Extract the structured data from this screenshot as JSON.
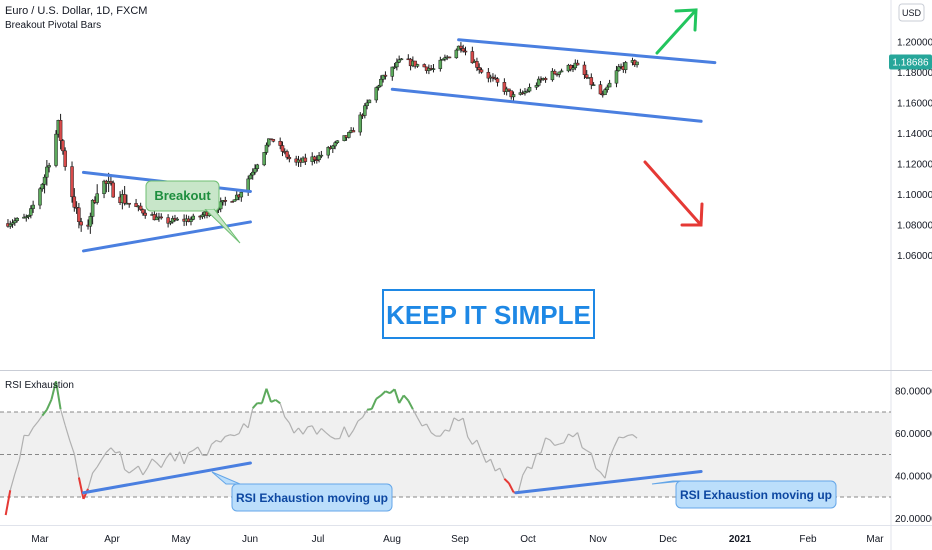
{
  "header": {
    "symbol_line": "Euro / U.S. Dollar, 1D, FXCM",
    "indicator_line": "Breakout Pivotal Bars",
    "currency_button": "USD"
  },
  "price_pane": {
    "y_ticks": [
      "1.20000",
      "1.18000",
      "1.16000",
      "1.14000",
      "1.12000",
      "1.10000",
      "1.08000",
      "1.06000"
    ],
    "current_price": "1.18686",
    "current_price_color": "#26a69a"
  },
  "rsi_pane": {
    "title": "RSI Exhaustion",
    "y_ticks": [
      "80.00000",
      "60.00000",
      "40.00000",
      "20.00000"
    ]
  },
  "x_axis": {
    "labels": [
      "Mar",
      "Apr",
      "May",
      "Jun",
      "Jul",
      "Aug",
      "Sep",
      "Oct",
      "Nov",
      "Dec",
      "2021",
      "Feb",
      "Mar"
    ]
  },
  "annotations": {
    "breakout_label": "Breakout",
    "keep_simple": "KEEP IT SIMPLE",
    "rsi_note_1": "RSI Exhaustion moving up",
    "rsi_note_2": "RSI Exhaustion moving up"
  },
  "colors": {
    "trendline": "#4a7fe0",
    "up_arrow": "#22c55e",
    "down_arrow": "#e53935",
    "candle_up": "#5daa5d",
    "candle_down": "#d84a4a",
    "rsi_line": "#b0b0b0"
  },
  "chart_data": [
    {
      "type": "candlestick",
      "x_axis": "date (2020)",
      "y_range": [
        1.05,
        1.215
      ],
      "key_levels": {
        "mar_low": 1.0636,
        "mar_high": 1.1495,
        "aug_high": 1.2011,
        "current": 1.18686
      },
      "close_path": [
        {
          "x": "Feb 15",
          "y": 1.081
        },
        {
          "x": "Feb 25",
          "y": 1.085
        },
        {
          "x": "Mar 3",
          "y": 1.112
        },
        {
          "x": "Mar 9",
          "y": 1.145
        },
        {
          "x": "Mar 13",
          "y": 1.112
        },
        {
          "x": "Mar 20",
          "y": 1.07
        },
        {
          "x": "Mar 27",
          "y": 1.11
        },
        {
          "x": "Apr 10",
          "y": 1.093
        },
        {
          "x": "Apr 24",
          "y": 1.082
        },
        {
          "x": "May 8",
          "y": 1.084
        },
        {
          "x": "May 21",
          "y": 1.095
        },
        {
          "x": "May 27",
          "y": 1.1
        },
        {
          "x": "Jun 10",
          "y": 1.137
        },
        {
          "x": "Jun 20",
          "y": 1.12
        },
        {
          "x": "Jul 1",
          "y": 1.125
        },
        {
          "x": "Jul 15",
          "y": 1.14
        },
        {
          "x": "Jul 28",
          "y": 1.175
        },
        {
          "x": "Aug 6",
          "y": 1.188
        },
        {
          "x": "Aug 20",
          "y": 1.182
        },
        {
          "x": "Sep 1",
          "y": 1.198
        },
        {
          "x": "Sep 10",
          "y": 1.181
        },
        {
          "x": "Sep 25",
          "y": 1.163
        },
        {
          "x": "Oct 9",
          "y": 1.178
        },
        {
          "x": "Oct 21",
          "y": 1.185
        },
        {
          "x": "Nov 2",
          "y": 1.164
        },
        {
          "x": "Nov 9",
          "y": 1.183
        },
        {
          "x": "Nov 17",
          "y": 1.1869
        }
      ],
      "trendlines": [
        {
          "name": "triangle-top",
          "from": {
            "x": "Mar 20",
            "y": 1.1145
          },
          "to": {
            "x": "Jun 1",
            "y": 1.102
          }
        },
        {
          "name": "triangle-bottom",
          "from": {
            "x": "Mar 20",
            "y": 1.063
          },
          "to": {
            "x": "Jun 1",
            "y": 1.082
          }
        },
        {
          "name": "channel-top",
          "from": {
            "x": "Aug 31",
            "y": 1.2015
          },
          "to": {
            "x": "Dec 21",
            "y": 1.1865
          }
        },
        {
          "name": "channel-bottom",
          "from": {
            "x": "Aug 2",
            "y": 1.169
          },
          "to": {
            "x": "Dec 15",
            "y": 1.148
          }
        }
      ]
    },
    {
      "type": "line",
      "title": "RSI Exhaustion",
      "y_range": [
        15,
        88
      ],
      "reference_levels": [
        70,
        50,
        30
      ],
      "series": [
        {
          "values": [
            {
              "x": "Feb 15",
              "y": 25
            },
            {
              "x": "Feb 22",
              "y": 55
            },
            {
              "x": "Mar 3",
              "y": 70
            },
            {
              "x": "Mar 8",
              "y": 83
            },
            {
              "x": "Mar 13",
              "y": 60
            },
            {
              "x": "Mar 20",
              "y": 32
            },
            {
              "x": "Apr 1",
              "y": 55
            },
            {
              "x": "Apr 10",
              "y": 42
            },
            {
              "x": "Apr 24",
              "y": 47
            },
            {
              "x": "May 8",
              "y": 50
            },
            {
              "x": "May 21",
              "y": 55
            },
            {
              "x": "Jun 1",
              "y": 67
            },
            {
              "x": "Jun 9",
              "y": 80
            },
            {
              "x": "Jun 20",
              "y": 60
            },
            {
              "x": "Jul 1",
              "y": 60
            },
            {
              "x": "Jul 15",
              "y": 61
            },
            {
              "x": "Jul 28",
              "y": 80
            },
            {
              "x": "Aug 5",
              "y": 77
            },
            {
              "x": "Aug 20",
              "y": 58
            },
            {
              "x": "Sep 1",
              "y": 66
            },
            {
              "x": "Sep 10",
              "y": 50
            },
            {
              "x": "Sep 25",
              "y": 33
            },
            {
              "x": "Oct 9",
              "y": 57
            },
            {
              "x": "Oct 21",
              "y": 60
            },
            {
              "x": "Nov 2",
              "y": 38
            },
            {
              "x": "Nov 9",
              "y": 60
            },
            {
              "x": "Nov 17",
              "y": 58
            }
          ]
        }
      ],
      "trendlines": [
        {
          "name": "rsi-support-1",
          "from": {
            "x": "Mar 20",
            "y": 32
          },
          "to": {
            "x": "Jun 1",
            "y": 46
          }
        },
        {
          "name": "rsi-support-2",
          "from": {
            "x": "Sep 25",
            "y": 32
          },
          "to": {
            "x": "Dec 15",
            "y": 42
          }
        }
      ]
    }
  ]
}
